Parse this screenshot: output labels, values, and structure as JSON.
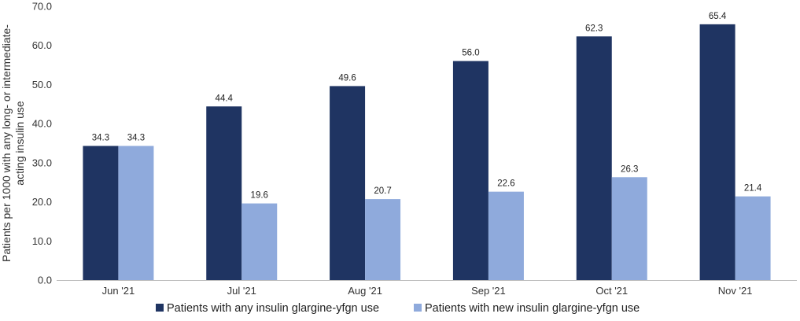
{
  "chart_data": {
    "type": "bar",
    "title": "",
    "xlabel": "",
    "ylabel_lines": [
      "Patients per 1000 with any long- or intermediate-",
      "acting insulin use"
    ],
    "categories": [
      "Jun '21",
      "Jul '21",
      "Aug '21",
      "Sep '21",
      "Oct '21",
      "Nov '21"
    ],
    "series": [
      {
        "name": "Patients with any insulin glargine-yfgn use",
        "color": "#1f3462",
        "values": [
          34.3,
          44.4,
          49.6,
          56.0,
          62.3,
          65.4
        ],
        "labels": [
          "34.3",
          "44.4",
          "49.6",
          "56.0",
          "62.3",
          "65.4"
        ]
      },
      {
        "name": "Patients with new insulin glargine-yfgn use",
        "color": "#8faadc",
        "values": [
          34.3,
          19.6,
          20.7,
          22.6,
          26.3,
          21.4
        ],
        "labels": [
          "34.3",
          "19.6",
          "20.7",
          "22.6",
          "26.3",
          "21.4"
        ]
      }
    ],
    "ylim": [
      0,
      70
    ],
    "yticks": [
      0,
      10,
      20,
      30,
      40,
      50,
      60,
      70
    ],
    "ytick_labels": [
      "0.0",
      "10.0",
      "20.0",
      "30.0",
      "40.0",
      "50.0",
      "60.0",
      "70.0"
    ],
    "grid": false,
    "legend_position": "bottom"
  }
}
